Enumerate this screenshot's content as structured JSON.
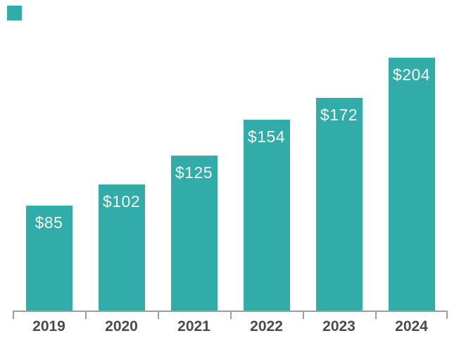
{
  "chart_data": {
    "type": "bar",
    "title": "",
    "categories": [
      "2019",
      "2020",
      "2021",
      "2022",
      "2023",
      "2024"
    ],
    "values": [
      85,
      102,
      125,
      154,
      172,
      204
    ],
    "data_labels": [
      "$85",
      "$102",
      "$125",
      "$154",
      "$172",
      "$204"
    ],
    "xlabel": "",
    "ylabel": "",
    "ylim": [
      0,
      210
    ],
    "grid": false,
    "legend_position": "none",
    "colors": {
      "bar": "#31ACA8",
      "data_label_text": "#f7fcfc",
      "x_tick_label_text": "#4a4a4a",
      "axis_line": "#9e9e9e",
      "background": "#ffffff"
    }
  },
  "legend_swatch": {
    "color": "#31ACA8"
  }
}
